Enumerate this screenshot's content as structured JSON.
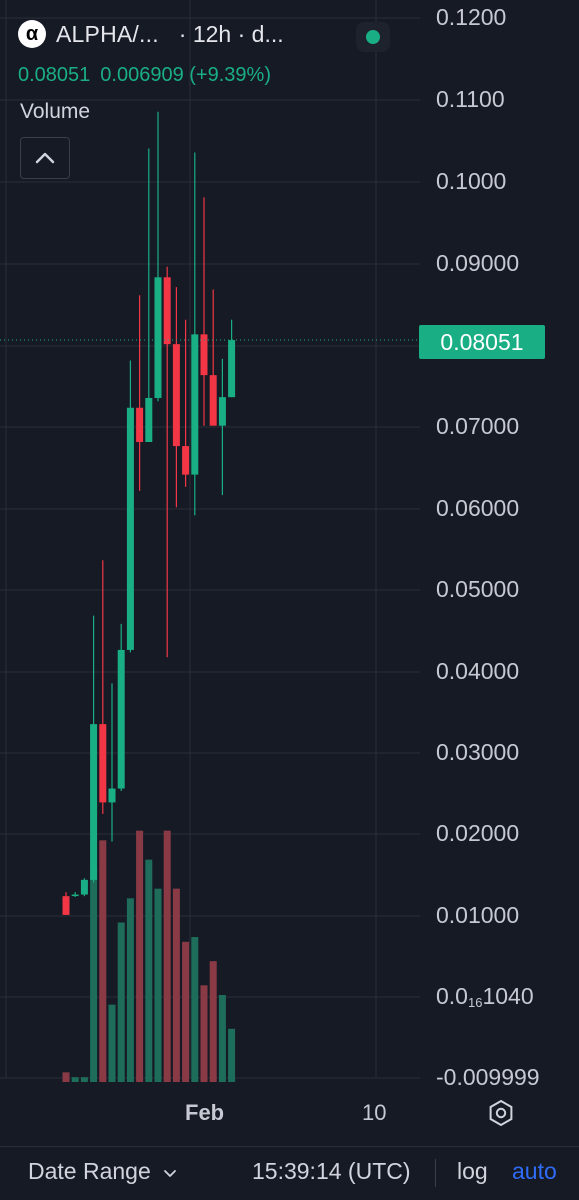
{
  "header": {
    "symbol": "ALPHA/...",
    "interval": "· 12h · d...",
    "last_price": "0.08051",
    "change": "0.006909 (+9.39%)",
    "volume_label": "Volume",
    "logo_glyph": "α"
  },
  "price_axis": {
    "ticks": [
      {
        "text": "0.1200"
      },
      {
        "text": "0.1100"
      },
      {
        "text": "0.1000"
      },
      {
        "text": "0.09000"
      },
      {
        "text": "0.07000"
      },
      {
        "text": "0.06000"
      },
      {
        "text": "0.05000"
      },
      {
        "text": "0.04000"
      },
      {
        "text": "0.03000"
      },
      {
        "text": "0.02000"
      },
      {
        "text": "0.01000"
      },
      {
        "text_pre": "0.0",
        "text_sub": "16",
        "text_post": "1040"
      },
      {
        "text": "-0.009999"
      }
    ],
    "current_price_badge": "0.08051"
  },
  "time_axis": {
    "labels": [
      "Feb",
      "10"
    ]
  },
  "icons": {
    "collapse": "chevron-up-icon",
    "settings": "gear-icon",
    "date_range": "chevron-down-icon"
  },
  "colors": {
    "up": "#1aae85",
    "down": "#f23645",
    "volume_up": "#1e6d5a",
    "volume_down": "#8a3a45",
    "background": "#161a25",
    "grid": "#2a2e39"
  },
  "bottom_bar": {
    "date_range": "Date Range",
    "time": "15:39:14 (UTC)",
    "log": "log",
    "auto": "auto"
  },
  "chart_data": {
    "type": "candlestick",
    "ylim": [
      -0.009999,
      0.12
    ],
    "current_price": 0.08051,
    "candles": [
      {
        "o": 0.0123,
        "h": 0.0128,
        "l": 0.01,
        "c": 0.01
      },
      {
        "o": 0.0125,
        "h": 0.0128,
        "l": 0.0122,
        "c": 0.0125
      },
      {
        "o": 0.0125,
        "h": 0.0145,
        "l": 0.0123,
        "c": 0.0143
      },
      {
        "o": 0.0143,
        "h": 0.0467,
        "l": 0.014,
        "c": 0.0334
      },
      {
        "o": 0.0334,
        "h": 0.0535,
        "l": 0.0224,
        "c": 0.0238
      },
      {
        "o": 0.0238,
        "h": 0.0384,
        "l": 0.019,
        "c": 0.0255
      },
      {
        "o": 0.0255,
        "h": 0.0457,
        "l": 0.0252,
        "c": 0.0425
      },
      {
        "o": 0.0425,
        "h": 0.078,
        "l": 0.0422,
        "c": 0.0722
      },
      {
        "o": 0.0722,
        "h": 0.086,
        "l": 0.062,
        "c": 0.068
      },
      {
        "o": 0.068,
        "h": 0.104,
        "l": 0.068,
        "c": 0.0734
      },
      {
        "o": 0.0734,
        "h": 0.1085,
        "l": 0.073,
        "c": 0.0882
      },
      {
        "o": 0.0882,
        "h": 0.0895,
        "l": 0.0416,
        "c": 0.08
      },
      {
        "o": 0.08,
        "h": 0.087,
        "l": 0.06,
        "c": 0.0675
      },
      {
        "o": 0.0675,
        "h": 0.083,
        "l": 0.0625,
        "c": 0.064
      },
      {
        "o": 0.064,
        "h": 0.1035,
        "l": 0.059,
        "c": 0.0812
      },
      {
        "o": 0.0812,
        "h": 0.098,
        "l": 0.07,
        "c": 0.0762
      },
      {
        "o": 0.0762,
        "h": 0.0867,
        "l": 0.07,
        "c": 0.07
      },
      {
        "o": 0.07,
        "h": 0.0782,
        "l": 0.0615,
        "c": 0.0735
      },
      {
        "o": 0.0735,
        "h": 0.083,
        "l": 0.0735,
        "c": 0.0805
      }
    ],
    "volumes": [
      2,
      1,
      1,
      44,
      50,
      16,
      33,
      38,
      52,
      46,
      40,
      52,
      40,
      29,
      30,
      20,
      25,
      18,
      11
    ]
  }
}
